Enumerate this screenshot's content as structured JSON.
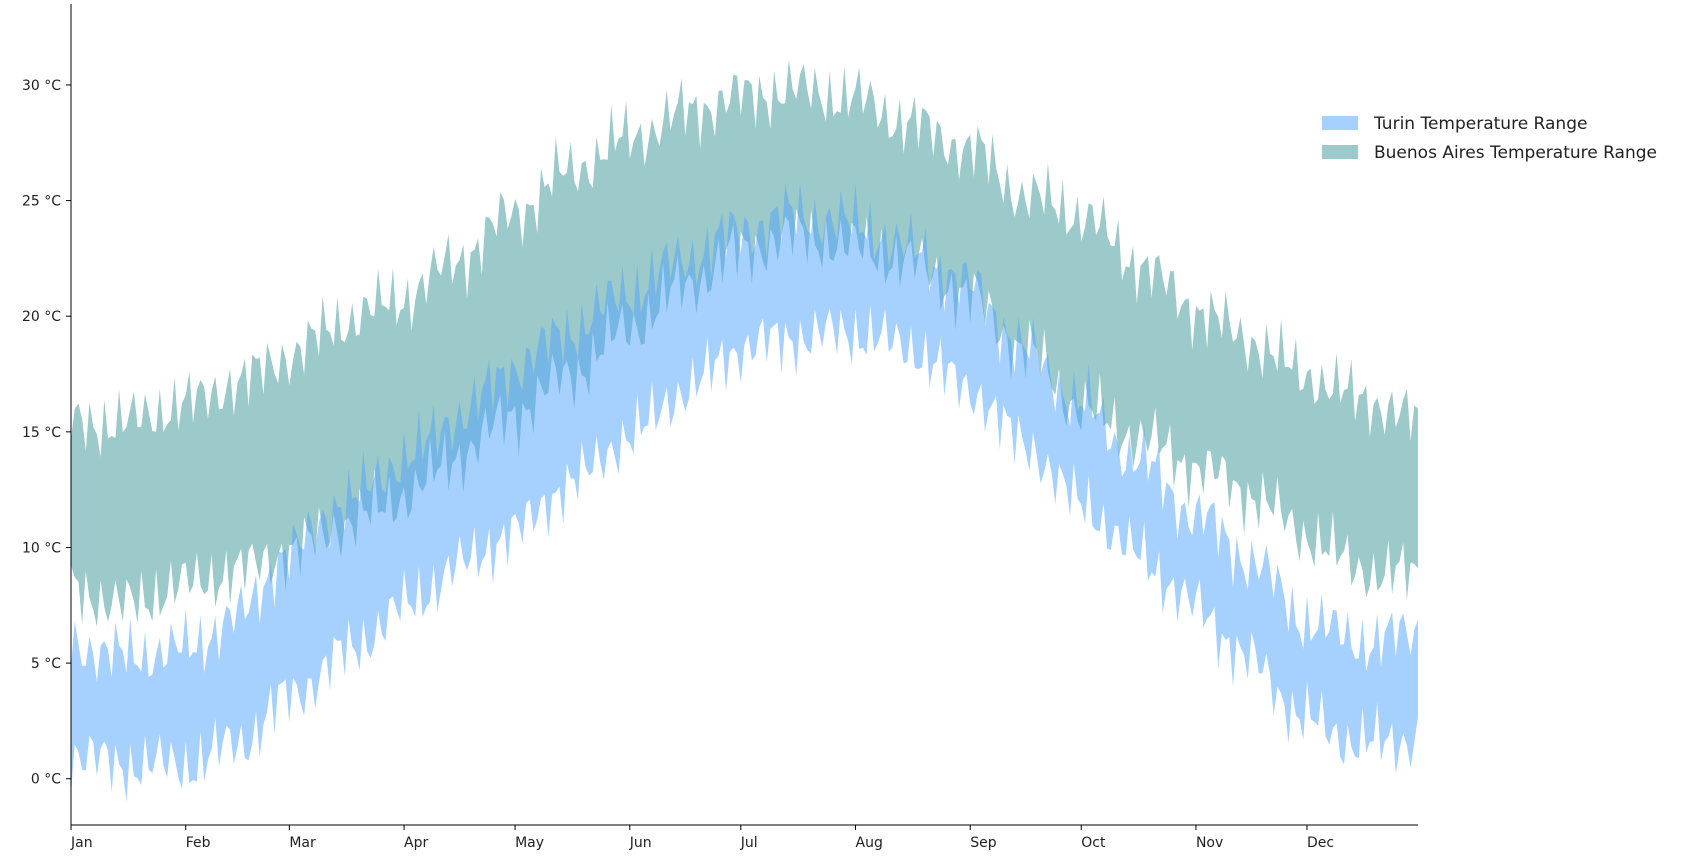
{
  "chart_data": {
    "type": "area",
    "title": "",
    "xlabel": "",
    "ylabel": "",
    "x_unit": "day of year",
    "x_range": [
      1,
      365
    ],
    "ylim": [
      -2,
      33.5
    ],
    "x_ticks": [
      {
        "label": "Jan",
        "day": 1
      },
      {
        "label": "Feb",
        "day": 32
      },
      {
        "label": "Mar",
        "day": 60
      },
      {
        "label": "Apr",
        "day": 91
      },
      {
        "label": "May",
        "day": 121
      },
      {
        "label": "Jun",
        "day": 152
      },
      {
        "label": "Jul",
        "day": 182
      },
      {
        "label": "Aug",
        "day": 213
      },
      {
        "label": "Sep",
        "day": 244
      },
      {
        "label": "Oct",
        "day": 274
      },
      {
        "label": "Nov",
        "day": 305
      },
      {
        "label": "Dec",
        "day": 335
      }
    ],
    "y_ticks": [
      {
        "label": "0 °C",
        "value": 0
      },
      {
        "label": "5 °C",
        "value": 5
      },
      {
        "label": "10 °C",
        "value": 10
      },
      {
        "label": "15 °C",
        "value": 15
      },
      {
        "label": "20 °C",
        "value": 20
      },
      {
        "label": "25 °C",
        "value": 25
      },
      {
        "label": "30 °C",
        "value": 30
      }
    ],
    "grid": false,
    "legend_position": "top-right",
    "series": [
      {
        "name": "Buenos Aires Temperature Range",
        "color": "#4a9c9c",
        "opacity": 0.55,
        "x": [
          1,
          15,
          32,
          46,
          60,
          75,
          91,
          106,
          121,
          136,
          152,
          167,
          182,
          197,
          213,
          228,
          244,
          259,
          274,
          289,
          305,
          320,
          335,
          350,
          365
        ],
        "low": [
          8.2,
          7.5,
          8.4,
          9.0,
          9.8,
          11.0,
          12.2,
          14.0,
          15.8,
          17.5,
          19.5,
          21.3,
          22.8,
          23.5,
          23.0,
          22.3,
          20.8,
          18.5,
          16.0,
          14.8,
          13.5,
          12.3,
          10.5,
          9.0,
          8.8
        ],
        "high": [
          15.3,
          15.4,
          16.2,
          17.1,
          18.3,
          19.8,
          20.8,
          22.5,
          24.5,
          26.3,
          27.7,
          28.8,
          29.5,
          29.8,
          29.4,
          28.3,
          27.2,
          25.2,
          24.4,
          22.3,
          20.3,
          18.9,
          17.4,
          16.4,
          15.5
        ]
      },
      {
        "name": "Turin Temperature Range",
        "color": "#4da3ff",
        "opacity": 0.5,
        "x": [
          1,
          15,
          32,
          46,
          60,
          75,
          91,
          106,
          121,
          136,
          152,
          167,
          182,
          197,
          213,
          228,
          244,
          259,
          274,
          289,
          305,
          320,
          335,
          350,
          365
        ],
        "low": [
          1.0,
          0.6,
          0.6,
          1.5,
          3.5,
          5.4,
          7.4,
          9.2,
          10.7,
          12.8,
          14.8,
          16.8,
          18.6,
          19.1,
          19.3,
          18.6,
          16.8,
          14.4,
          11.9,
          9.7,
          7.4,
          5.0,
          2.5,
          1.5,
          1.7
        ],
        "high": [
          5.8,
          5.3,
          5.6,
          7.0,
          9.8,
          12.0,
          13.8,
          15.7,
          17.8,
          19.4,
          21.1,
          22.5,
          23.7,
          24.4,
          24.0,
          22.9,
          21.3,
          18.5,
          16.2,
          13.8,
          11.4,
          9.4,
          6.8,
          5.9,
          6.3
        ]
      }
    ],
    "legend": [
      {
        "label": "Turin Temperature Range",
        "color": "#4da3ff",
        "opacity": 0.5
      },
      {
        "label": "Buenos Aires Temperature Range",
        "color": "#4a9c9c",
        "opacity": 0.55
      }
    ]
  }
}
